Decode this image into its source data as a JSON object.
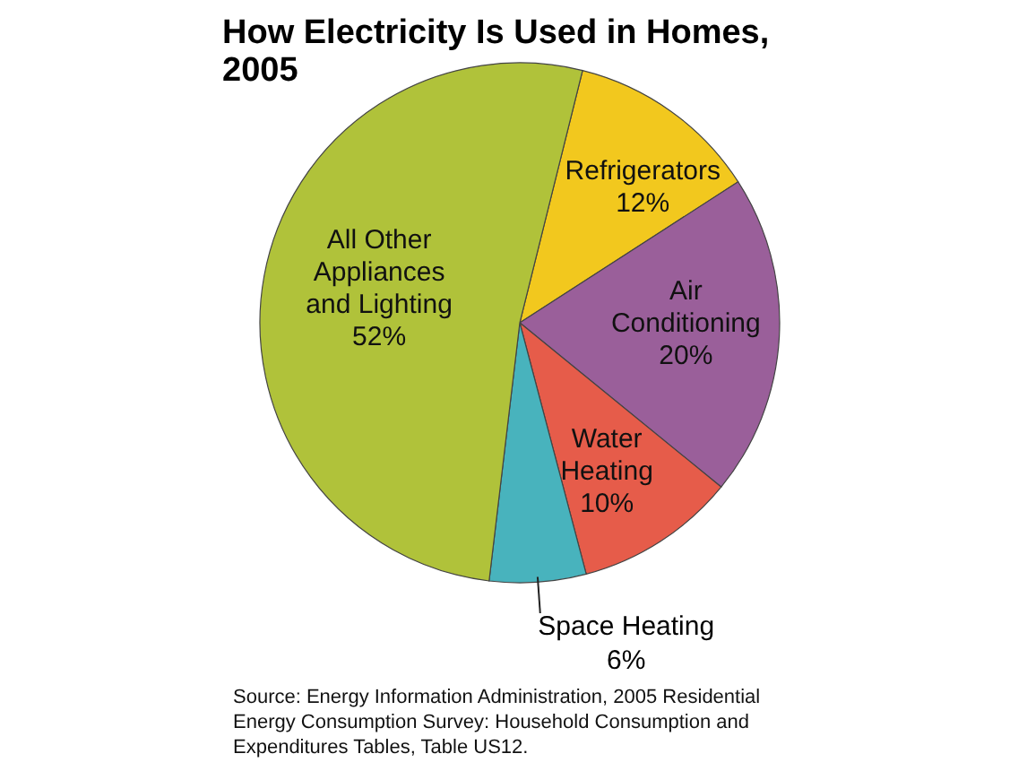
{
  "chart_data": {
    "type": "pie",
    "title": "How Electricity Is Used in Homes, 2005",
    "categories": [
      "Refrigerators",
      "Air Conditioning",
      "Water Heating",
      "Space Heating",
      "All Other Appliances and Lighting"
    ],
    "values": [
      12,
      20,
      10,
      6,
      52
    ],
    "value_labels": [
      "12%",
      "20%",
      "10%",
      "6%",
      "52%"
    ],
    "colors": [
      "#f2c81e",
      "#9a5f9a",
      "#e65c4a",
      "#48b3bd",
      "#b0c23a"
    ],
    "annotations": [
      "Source: Energy Information Administration, 2005 Residential Energy Consumption Survey: Household Consumption and Expenditures Tables, Table US12."
    ]
  }
}
